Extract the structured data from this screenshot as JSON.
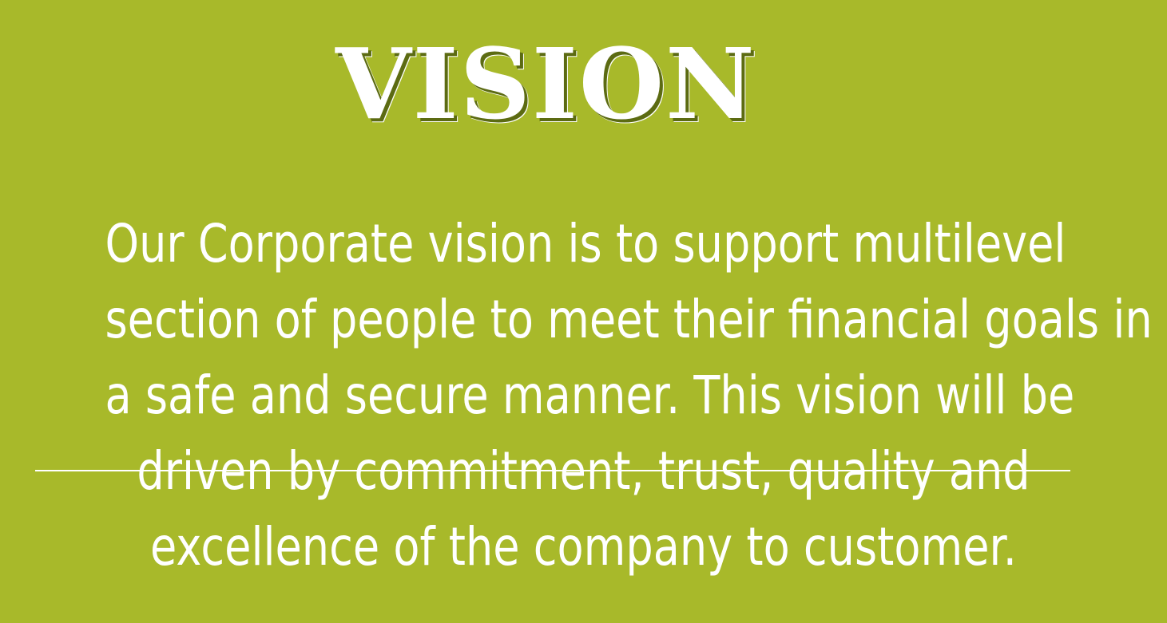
{
  "slide": {
    "title": "VISION",
    "lines": [
      "Our Corporate vision is to support multilevel",
      "section of people to meet their financial goals in",
      "a safe and secure manner. This vision will be",
      "driven by commitment, trust, quality and",
      "excellence of the company to customer."
    ]
  },
  "colors": {
    "background": "#a8b92a",
    "text": "#ffffff",
    "title_shadow": "#5c6b12"
  }
}
